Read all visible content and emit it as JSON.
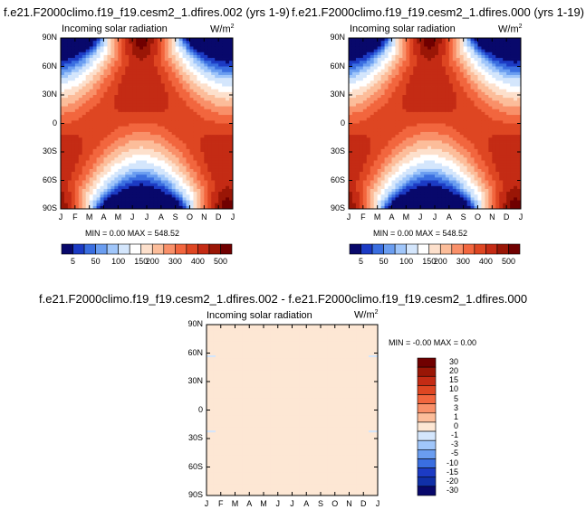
{
  "titles": {
    "left": "f.e21.F2000climo.f19_f19.cesm2_1.dfires.002 (yrs 1-9)",
    "right": "f.e21.F2000climo.f19_f19.cesm2_1.dfires.000 (yrs 1-19)",
    "diff": "f.e21.F2000climo.f19_f19.cesm2_1.dfires.002 - f.e21.F2000climo.f19_f19.cesm2_1.dfires.000"
  },
  "panel_title": "Incoming solar radiation",
  "units": {
    "base": "W/m",
    "exp": "2"
  },
  "minmax": {
    "left": "MIN =    0.00 MAX = 548.52",
    "right": "MIN =    0.00 MAX = 548.52",
    "diff": "MIN =  -0.00 MAX =   0.00"
  },
  "colors": {
    "abs_levels": [
      "#08086b",
      "#1c3bc4",
      "#3a6ee0",
      "#6a9df0",
      "#a0c6fa",
      "#d4e6fc",
      "#ffffff",
      "#fde0cc",
      "#fcbd9a",
      "#f99069",
      "#f2663e",
      "#de4622",
      "#c42b14",
      "#9a1606",
      "#700000"
    ],
    "diff_levels": [
      "#700000",
      "#9a1606",
      "#c42b14",
      "#de4622",
      "#f2663e",
      "#f99069",
      "#fcbd9a",
      "#fde7d4",
      "#d4e6fc",
      "#a0c6fa",
      "#6a9df0",
      "#3a6ee0",
      "#1c3bc4",
      "#1030a8",
      "#08086b"
    ],
    "diff_fill": "#fde7d4"
  },
  "chart_data": [
    {
      "type": "heatmap",
      "title": "Incoming solar radiation",
      "units": "W/m2",
      "x_ticks": [
        "J",
        "F",
        "M",
        "A",
        "M",
        "J",
        "J",
        "A",
        "S",
        "O",
        "N",
        "D",
        "J"
      ],
      "y_ticks": [
        "90N",
        "60N",
        "30N",
        "0",
        "30S",
        "60S",
        "90S"
      ],
      "colorbar_labels": [
        "5",
        "50",
        "100",
        "150",
        "200",
        "300",
        "400",
        "500"
      ],
      "min": 0.0,
      "max": 548.52
    },
    {
      "type": "heatmap",
      "title": "Incoming solar radiation",
      "units": "W/m2",
      "x_ticks": [
        "J",
        "F",
        "M",
        "A",
        "M",
        "J",
        "J",
        "A",
        "S",
        "O",
        "N",
        "D",
        "J"
      ],
      "y_ticks": [
        "90N",
        "60N",
        "30N",
        "0",
        "30S",
        "60S",
        "90S"
      ],
      "colorbar_labels": [
        "5",
        "50",
        "100",
        "150",
        "200",
        "300",
        "400",
        "500"
      ],
      "min": 0.0,
      "max": 548.52
    },
    {
      "type": "heatmap",
      "title": "Incoming solar radiation",
      "units": "W/m2",
      "x_ticks": [
        "J",
        "F",
        "M",
        "A",
        "M",
        "J",
        "J",
        "A",
        "S",
        "O",
        "N",
        "D",
        "J"
      ],
      "y_ticks": [
        "90N",
        "60N",
        "30N",
        "0",
        "30S",
        "60S",
        "90S"
      ],
      "colorbar_labels": [
        "30",
        "20",
        "15",
        "10",
        "5",
        "3",
        "1",
        "0",
        "-1",
        "-3",
        "-5",
        "-10",
        "-15",
        "-20",
        "-30"
      ],
      "min": -0.0,
      "max": 0.0
    }
  ]
}
